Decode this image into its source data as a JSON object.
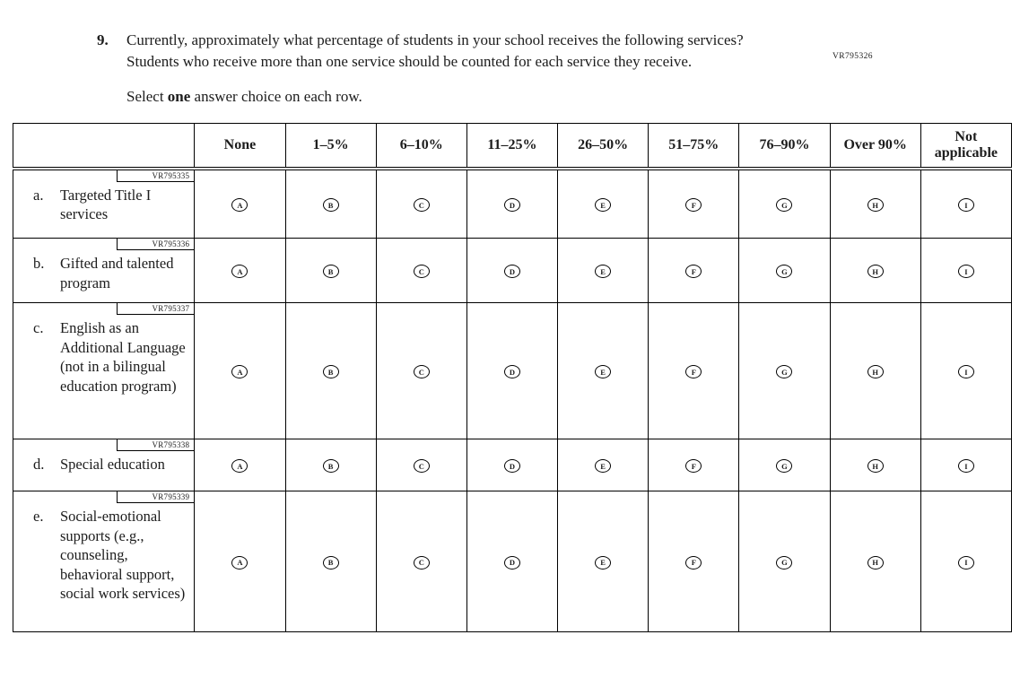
{
  "page_code": "VR795326",
  "question": {
    "number": "9.",
    "text": "Currently, approximately what percentage of students in your school receives the following services? Students who receive more than one service should be counted for each service they receive.",
    "instruction": {
      "prefix": "Select ",
      "bold": "one",
      "suffix": " answer choice on each row."
    }
  },
  "table": {
    "column_headers": [
      "None",
      "1–5%",
      "6–10%",
      "11–25%",
      "26–50%",
      "51–75%",
      "76–90%",
      "Over 90%",
      "Not applicable"
    ],
    "option_letters": [
      "A",
      "B",
      "C",
      "D",
      "E",
      "F",
      "G",
      "H",
      "I"
    ],
    "rows": [
      {
        "code": "VR795335",
        "letter": "a.",
        "label": "Targeted Title I services"
      },
      {
        "code": "VR795336",
        "letter": "b.",
        "label": "Gifted and talented program"
      },
      {
        "code": "VR795337",
        "letter": "c.",
        "label": "English as an Additional Language (not in a bilingual education program)"
      },
      {
        "code": "VR795338",
        "letter": "d.",
        "label": "Special education"
      },
      {
        "code": "VR795339",
        "letter": "e.",
        "label": "Social-emotional supports (e.g., counseling, behavioral support, social work services)"
      }
    ]
  },
  "colors": {
    "ink": "#1c1c1c",
    "background": "#ffffff"
  }
}
